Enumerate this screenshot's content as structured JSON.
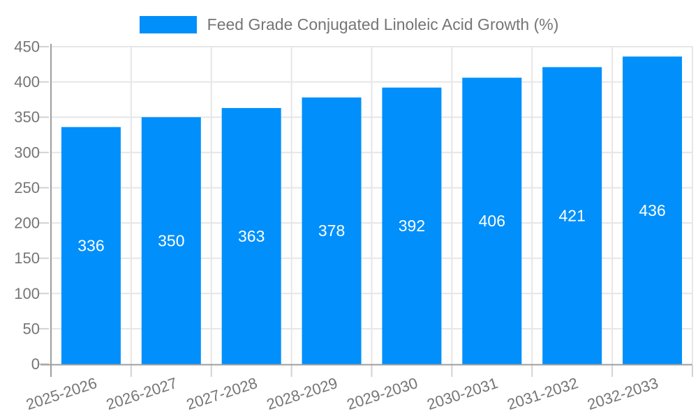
{
  "legend": {
    "label": "Feed Grade Conjugated Linoleic Acid Growth (%)",
    "swatch_color": "#008FFB"
  },
  "chart_data": {
    "type": "bar",
    "title": "Feed Grade Conjugated Linoleic Acid Growth (%)",
    "categories": [
      "2025-2026",
      "2026-2027",
      "2027-2028",
      "2028-2029",
      "2029-2030",
      "2030-2031",
      "2031-2032",
      "2032-2033"
    ],
    "series": [
      {
        "name": "Feed Grade Conjugated Linoleic Acid Growth (%)",
        "values": [
          336,
          350,
          363,
          378,
          392,
          406,
          421,
          436
        ]
      }
    ],
    "xlabel": "",
    "ylabel": "",
    "ylim": [
      0,
      450
    ],
    "yticks": [
      0,
      50,
      100,
      150,
      200,
      250,
      300,
      350,
      400,
      450
    ],
    "grid": true,
    "legend_position": "top",
    "x_label_rotation_deg": -18,
    "colors": {
      "bar": "#008FFB",
      "bar_value_text": "#FFFFFF",
      "axis_text": "#757575",
      "grid_line": "#E6E6E6",
      "tick_line": "#D2D2D2",
      "axis_line": "#9E9E9E",
      "background": "#FFFFFF"
    }
  }
}
